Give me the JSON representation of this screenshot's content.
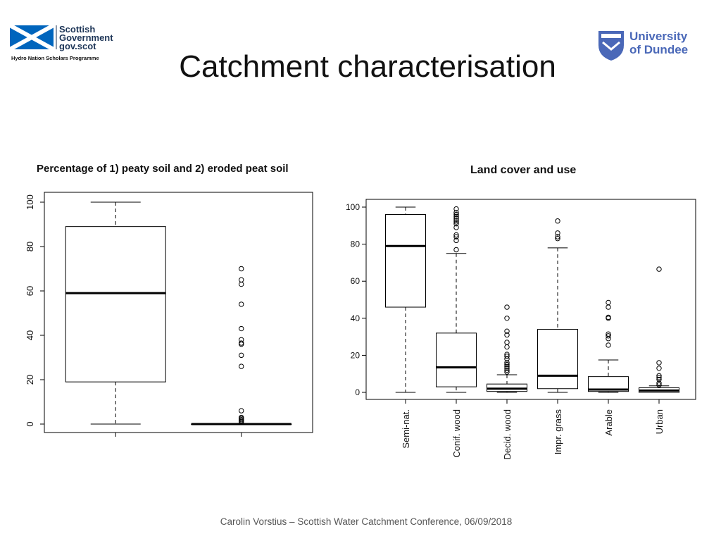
{
  "header": {
    "gov_logo": {
      "line1": "Scottish",
      "line2": "Government",
      "line3": "gov.scot",
      "subtitle": "Hydro Nation Scholars Programme",
      "flag_color": "#0065BD"
    },
    "title": "Catchment characterisation",
    "uni_logo": {
      "line1": "University",
      "line2": "of Dundee",
      "color": "#4A68B8"
    }
  },
  "footer": {
    "text": "Carolin Vorstius – Scottish Water Catchment Conference, 06/09/2018"
  },
  "chart_data": [
    {
      "type": "boxplot",
      "title": "Percentage of 1) peaty soil and 2) eroded peat soil",
      "xlabel": "",
      "ylabel": "",
      "ylim": [
        0,
        100
      ],
      "yticks": [
        0,
        20,
        40,
        60,
        80,
        100
      ],
      "categories": [
        "",
        ""
      ],
      "boxes": [
        {
          "whisker_low": 0,
          "q1": 19,
          "median": 59,
          "q3": 89,
          "whisker_high": 100,
          "outliers": []
        },
        {
          "whisker_low": 0,
          "q1": 0,
          "median": 0,
          "q3": 0,
          "whisker_high": 0,
          "outliers": [
            1,
            1.5,
            2,
            2.5,
            3,
            6,
            26,
            31,
            36,
            36.5,
            38,
            43,
            54,
            63,
            65,
            70
          ]
        }
      ]
    },
    {
      "type": "boxplot",
      "title": "Land cover and use",
      "xlabel": "",
      "ylabel": "",
      "ylim": [
        0,
        100
      ],
      "yticks": [
        0,
        20,
        40,
        60,
        80,
        100
      ],
      "categories": [
        "Semi-nat.",
        "Conif. wood",
        "Decid. wood",
        "Impr. grass",
        "Arable",
        "Urban"
      ],
      "boxes": [
        {
          "whisker_low": 0,
          "q1": 46,
          "median": 79,
          "q3": 96,
          "whisker_high": 100,
          "outliers": []
        },
        {
          "whisker_low": 0,
          "q1": 3,
          "median": 13.5,
          "q3": 32,
          "whisker_high": 75,
          "outliers": [
            77,
            82,
            84,
            85,
            89,
            91,
            92,
            93,
            94,
            95,
            96,
            97,
            99
          ]
        },
        {
          "whisker_low": 0,
          "q1": 0.5,
          "median": 2,
          "q3": 4.5,
          "whisker_high": 9.5,
          "outliers": [
            11,
            12,
            13,
            14,
            15,
            16,
            18,
            19.5,
            20.5,
            24.5,
            27,
            31,
            33,
            40,
            46
          ]
        },
        {
          "whisker_low": 0,
          "q1": 2,
          "median": 9,
          "q3": 34,
          "whisker_high": 78,
          "outliers": [
            83,
            84,
            86,
            92.5
          ]
        },
        {
          "whisker_low": 0,
          "q1": 0.5,
          "median": 1.5,
          "q3": 8.5,
          "whisker_high": 17.5,
          "outliers": [
            25.5,
            29,
            30.5,
            31.5,
            40,
            40.5,
            46,
            48.5
          ]
        },
        {
          "whisker_low": 0,
          "q1": 0,
          "median": 1,
          "q3": 2.5,
          "whisker_high": 3.5,
          "outliers": [
            4,
            5,
            7,
            8,
            9,
            13,
            16,
            66.5
          ]
        }
      ]
    }
  ]
}
